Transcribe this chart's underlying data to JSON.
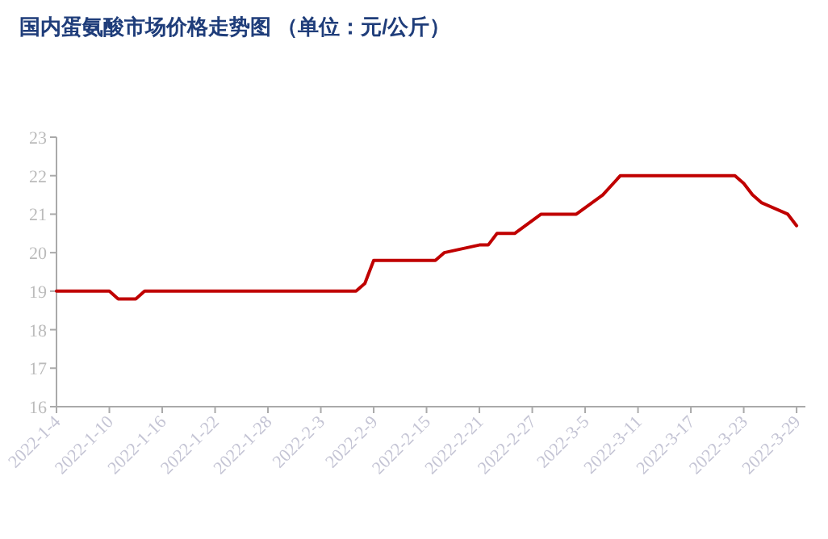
{
  "chart_data": {
    "type": "line",
    "title": "国内蛋氨酸市场价格走势图 （单位：元/公斤）",
    "x": [
      "2022-01-04",
      "2022-01-10",
      "2022-01-11",
      "2022-01-13",
      "2022-01-14",
      "2022-02-07",
      "2022-02-08",
      "2022-02-09",
      "2022-02-16",
      "2022-02-17",
      "2022-02-21",
      "2022-02-22",
      "2022-02-23",
      "2022-02-25",
      "2022-02-28",
      "2022-03-04",
      "2022-03-07",
      "2022-03-09",
      "2022-03-22",
      "2022-03-23",
      "2022-03-24",
      "2022-03-25",
      "2022-03-28",
      "2022-03-29"
    ],
    "series": [
      {
        "color": "#c00000",
        "values": [
          19.0,
          19.0,
          18.8,
          18.8,
          19.0,
          19.0,
          19.2,
          19.8,
          19.8,
          20.0,
          20.2,
          20.2,
          20.5,
          20.5,
          21.0,
          21.0,
          21.5,
          22.0,
          22.0,
          21.8,
          21.5,
          21.3,
          21.0,
          20.7
        ]
      }
    ],
    "xlim": [
      "2022-01-04",
      "2022-03-30"
    ],
    "xticks": [
      {
        "value": "2022-01-04",
        "label": "2022-1-4"
      },
      {
        "value": "2022-01-10",
        "label": "2022-1-10"
      },
      {
        "value": "2022-01-16",
        "label": "2022-1-16"
      },
      {
        "value": "2022-01-22",
        "label": "2022-1-22"
      },
      {
        "value": "2022-01-28",
        "label": "2022-1-28"
      },
      {
        "value": "2022-02-03",
        "label": "2022-2-3"
      },
      {
        "value": "2022-02-09",
        "label": "2022-2-9"
      },
      {
        "value": "2022-02-15",
        "label": "2022-2-15"
      },
      {
        "value": "2022-02-21",
        "label": "2022-2-21"
      },
      {
        "value": "2022-02-27",
        "label": "2022-2-27"
      },
      {
        "value": "2022-03-05",
        "label": "2022-3-5"
      },
      {
        "value": "2022-03-11",
        "label": "2022-3-11"
      },
      {
        "value": "2022-03-17",
        "label": "2022-3-17"
      },
      {
        "value": "2022-03-23",
        "label": "2022-3-23"
      },
      {
        "value": "2022-03-29",
        "label": "2022-3-29"
      }
    ],
    "ylim": [
      16,
      23
    ],
    "yticks": [
      16,
      17,
      18,
      19,
      20,
      21,
      22,
      23
    ],
    "grid": false
  }
}
